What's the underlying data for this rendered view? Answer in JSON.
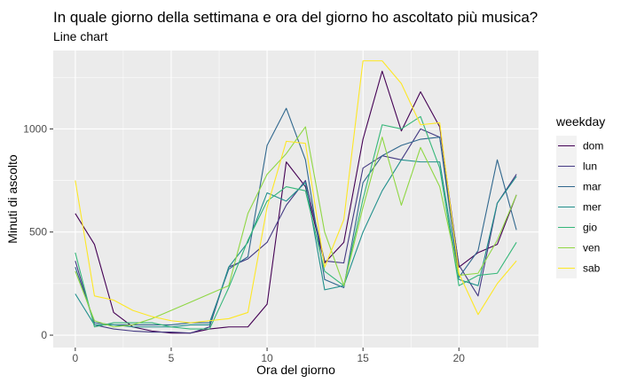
{
  "chart_data": {
    "type": "line",
    "title": "In quale giorno della settimana e ora del giorno ho ascoltato più musica?",
    "subtitle": "Line chart",
    "xlabel": "Ora del giorno",
    "ylabel": "Minuti di ascolto",
    "xlim": [
      -1.15,
      24.15
    ],
    "ylim": [
      -60,
      1380
    ],
    "x_ticks": [
      0,
      5,
      10,
      15,
      20
    ],
    "y_ticks": [
      0,
      500,
      1000
    ],
    "grid": true,
    "legend_title": "weekday",
    "legend_position": "right",
    "x": [
      0,
      1,
      2,
      3,
      4,
      5,
      6,
      7,
      8,
      9,
      10,
      11,
      12,
      13,
      14,
      15,
      16,
      17,
      18,
      19,
      20,
      21,
      22,
      23
    ],
    "series": [
      {
        "name": "dom",
        "color": "#440154",
        "values": [
          590,
          440,
          110,
          40,
          20,
          10,
          10,
          30,
          40,
          40,
          150,
          840,
          720,
          350,
          450,
          950,
          1280,
          990,
          1180,
          1010,
          330,
          400,
          440,
          680
        ]
      },
      {
        "name": "lun",
        "color": "#443A83",
        "values": [
          360,
          50,
          30,
          20,
          15,
          15,
          10,
          40,
          330,
          370,
          450,
          630,
          750,
          360,
          350,
          810,
          870,
          850,
          1000,
          960,
          340,
          190,
          640,
          780
        ]
      },
      {
        "name": "mar",
        "color": "#31688E",
        "values": [
          330,
          60,
          50,
          50,
          50,
          50,
          60,
          60,
          320,
          380,
          920,
          1100,
          850,
          270,
          230,
          740,
          870,
          920,
          950,
          960,
          280,
          410,
          850,
          510
        ]
      },
      {
        "name": "mer",
        "color": "#21908C",
        "values": [
          200,
          50,
          50,
          40,
          40,
          40,
          50,
          50,
          330,
          450,
          690,
          650,
          740,
          220,
          240,
          500,
          700,
          850,
          840,
          840,
          270,
          240,
          640,
          770
        ]
      },
      {
        "name": "gio",
        "color": "#35B779",
        "values": [
          400,
          40,
          60,
          60,
          60,
          40,
          30,
          30,
          230,
          460,
          650,
          720,
          700,
          310,
          240,
          660,
          1020,
          1000,
          1060,
          810,
          240,
          290,
          300,
          450
        ]
      },
      {
        "name": "ven",
        "color": "#8FD744",
        "values": [
          310,
          70,
          40,
          50,
          80,
          120,
          160,
          200,
          240,
          590,
          780,
          880,
          1010,
          500,
          240,
          620,
          960,
          630,
          910,
          720,
          290,
          300,
          460,
          680
        ]
      },
      {
        "name": "sab",
        "color": "#FDE725",
        "values": [
          750,
          190,
          170,
          120,
          90,
          70,
          60,
          70,
          80,
          110,
          620,
          940,
          930,
          330,
          560,
          1330,
          1330,
          1220,
          1020,
          1030,
          300,
          100,
          250,
          360
        ]
      }
    ]
  }
}
